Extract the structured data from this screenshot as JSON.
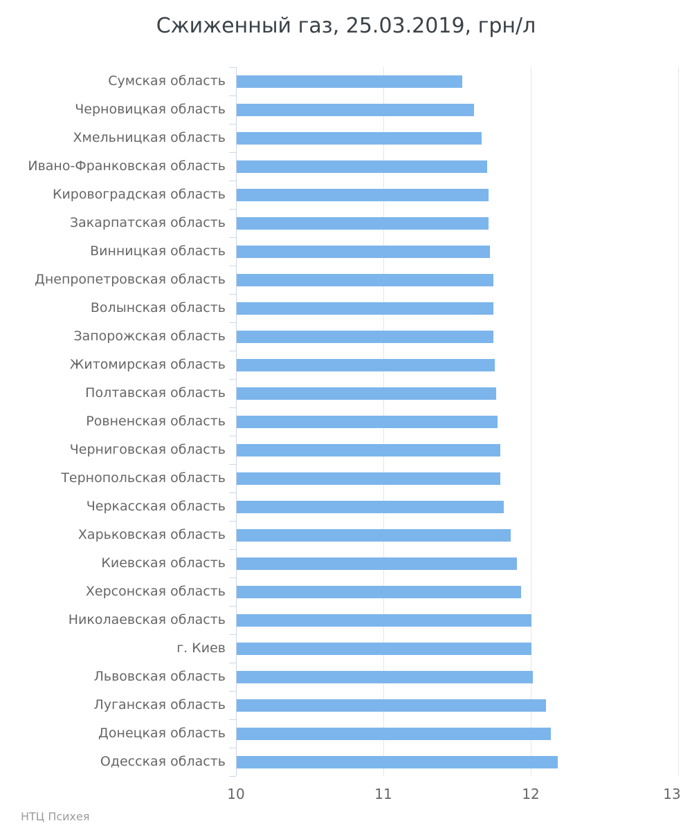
{
  "chart_data": {
    "type": "bar",
    "orientation": "horizontal",
    "title": "Сжиженный газ, 25.03.2019, грн/л",
    "credits": "НТЦ Психея",
    "categories": [
      "Сумская область",
      "Черновицкая область",
      "Хмельницкая область",
      "Ивано-Франковская область",
      "Кировоградская область",
      "Закарпатская область",
      "Винницкая область",
      "Днепропетровская область",
      "Волынская область",
      "Запорожская область",
      "Житомирская область",
      "Полтавская область",
      "Ровненская область",
      "Черниговская область",
      "Тернопольская область",
      "Черкасская область",
      "Харьковская область",
      "Киевская область",
      "Херсонская область",
      "Николаевская область",
      "г. Киев",
      "Львовская область",
      "Луганская область",
      "Донецкая область",
      "Одесская область"
    ],
    "values": [
      11.53,
      11.61,
      11.66,
      11.7,
      11.71,
      11.71,
      11.72,
      11.74,
      11.74,
      11.74,
      11.75,
      11.76,
      11.77,
      11.79,
      11.79,
      11.81,
      11.86,
      11.9,
      11.93,
      12.0,
      12.0,
      12.01,
      12.1,
      12.13,
      12.18
    ],
    "xlabel": "",
    "ylabel": "",
    "xlim": [
      10,
      13
    ],
    "x_ticks": [
      10,
      11,
      12,
      13
    ],
    "grid": true,
    "legend": "none",
    "colors": {
      "bar": "#7cb5ec",
      "grid": "#e6e6e6",
      "axis": "#ccd6eb",
      "labels": "#666666",
      "title": "#3b4248",
      "credits": "#9b9b9b"
    }
  }
}
